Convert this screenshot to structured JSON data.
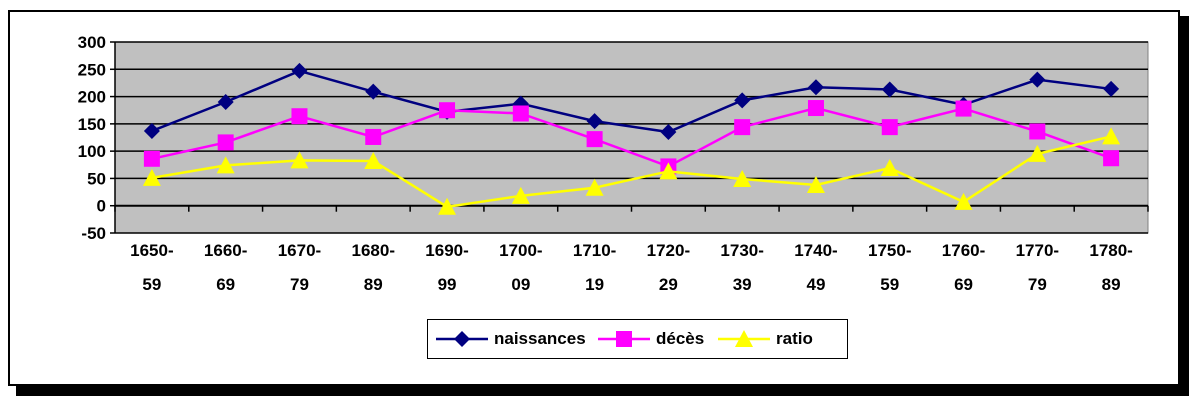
{
  "chart_data": {
    "type": "line",
    "categories": [
      [
        "1650-",
        "59"
      ],
      [
        "1660-",
        "69"
      ],
      [
        "1670-",
        "79"
      ],
      [
        "1680-",
        "89"
      ],
      [
        "1690-",
        "99"
      ],
      [
        "1700-",
        "09"
      ],
      [
        "1710-",
        "19"
      ],
      [
        "1720-",
        "29"
      ],
      [
        "1730-",
        "39"
      ],
      [
        "1740-",
        "49"
      ],
      [
        "1750-",
        "59"
      ],
      [
        "1760-",
        "69"
      ],
      [
        "1770-",
        "79"
      ],
      [
        "1780-",
        "89"
      ]
    ],
    "ylim": [
      -50,
      300
    ],
    "yticks": [
      -50,
      0,
      50,
      100,
      150,
      200,
      250,
      300
    ],
    "grid": true,
    "legend_position": "bottom",
    "series": [
      {
        "name": "naissances",
        "color": "#000080",
        "marker": "diamond",
        "values": [
          137,
          190,
          247,
          209,
          172,
          187,
          155,
          135,
          193,
          217,
          213,
          185,
          231,
          214
        ]
      },
      {
        "name": "décès",
        "color": "#FF00FF",
        "marker": "square",
        "values": [
          86,
          116,
          164,
          126,
          175,
          169,
          122,
          72,
          144,
          179,
          144,
          178,
          136,
          87
        ]
      },
      {
        "name": "ratio",
        "color": "#FFFF00",
        "marker": "triangle",
        "values": [
          51,
          74,
          83,
          82,
          -2,
          18,
          33,
          63,
          49,
          38,
          69,
          7,
          95,
          127
        ]
      }
    ]
  }
}
